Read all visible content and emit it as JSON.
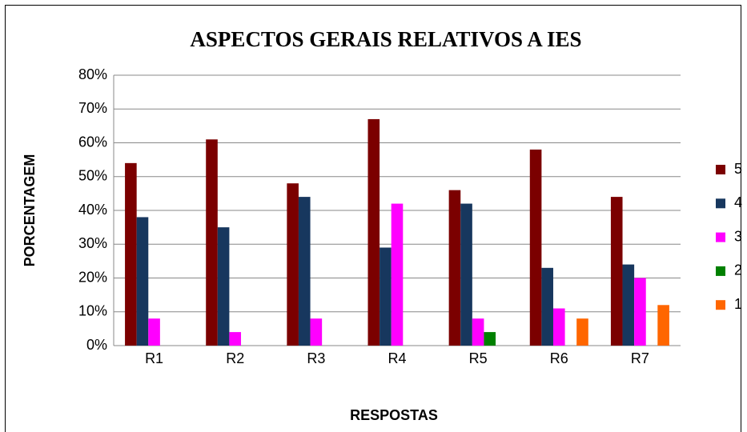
{
  "chart_data": {
    "type": "bar",
    "title": "ASPECTOS GERAIS RELATIVOS A IES",
    "x_label": "RESPOSTAS",
    "y_label": "PORCENTAGEM",
    "categories": [
      "R1",
      "R2",
      "R3",
      "R4",
      "R5",
      "R6",
      "R7"
    ],
    "series": [
      {
        "name": "5",
        "color": "#7b0000",
        "values": [
          54,
          61,
          48,
          67,
          46,
          58,
          44
        ]
      },
      {
        "name": "4",
        "color": "#17375e",
        "values": [
          38,
          35,
          44,
          29,
          42,
          23,
          24
        ]
      },
      {
        "name": "3",
        "color": "#ff00ff",
        "values": [
          8,
          4,
          8,
          42,
          8,
          11,
          20
        ]
      },
      {
        "name": "2",
        "color": "#008000",
        "values": [
          0,
          0,
          0,
          0,
          4,
          0,
          0
        ]
      },
      {
        "name": "1",
        "color": "#ff6600",
        "values": [
          0,
          0,
          0,
          0,
          0,
          8,
          12
        ]
      }
    ],
    "ylim": [
      0,
      80
    ],
    "yticks": [
      {
        "value": 0,
        "label": "0%"
      },
      {
        "value": 10,
        "label": "10%"
      },
      {
        "value": 20,
        "label": "20%"
      },
      {
        "value": 30,
        "label": "30%"
      },
      {
        "value": 40,
        "label": "40%"
      },
      {
        "value": 50,
        "label": "50%"
      },
      {
        "value": 60,
        "label": "60%"
      },
      {
        "value": 70,
        "label": "70%"
      },
      {
        "value": 80,
        "label": "80%"
      }
    ],
    "grid": true,
    "legend": "right"
  }
}
